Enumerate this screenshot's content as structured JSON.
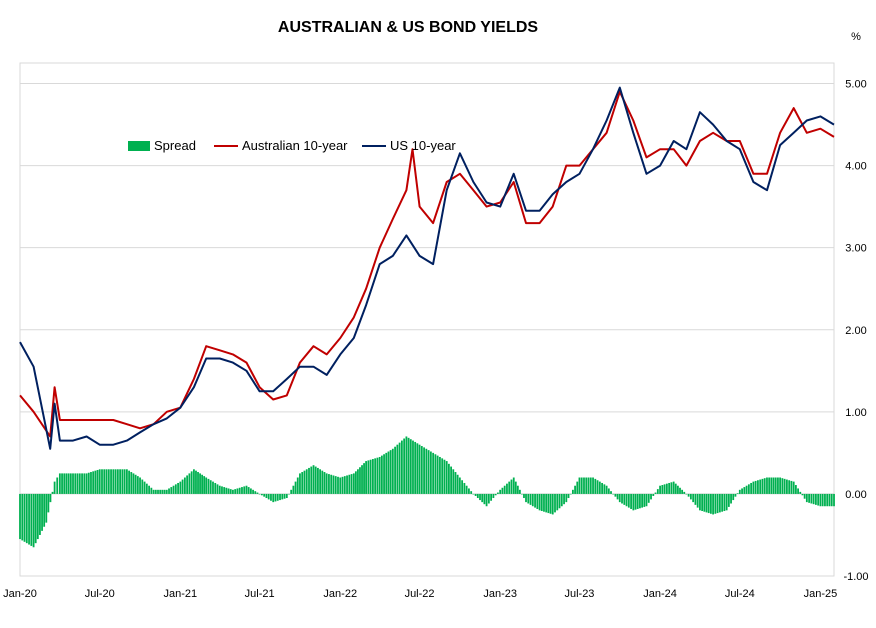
{
  "chart_data": {
    "type": "line",
    "title": "AUSTRALIAN & US BOND YIELDS",
    "unit_label": "%",
    "ylim": [
      -1.0,
      5.25
    ],
    "yticks": [
      -1.0,
      0.0,
      1.0,
      2.0,
      3.0,
      4.0,
      5.0
    ],
    "ytick_labels": [
      "-1.00",
      "0.00",
      "1.00",
      "2.00",
      "3.00",
      "4.00",
      "5.00"
    ],
    "xlim": [
      "2020-01-01",
      "2025-02-01"
    ],
    "xtick_dates": [
      "2020-01-01",
      "2020-07-01",
      "2021-01-01",
      "2021-07-01",
      "2022-01-01",
      "2022-07-01",
      "2023-01-01",
      "2023-07-01",
      "2024-01-01",
      "2024-07-01",
      "2025-01-01"
    ],
    "xtick_labels": [
      "Jan-20",
      "Jul-20",
      "Jan-21",
      "Jul-21",
      "Jan-22",
      "Jul-22",
      "Jan-23",
      "Jul-23",
      "Jan-24",
      "Jul-24",
      "Jan-25"
    ],
    "y_axis_position": "right",
    "grid": "horizontal",
    "legend": {
      "placement": "top-left"
    },
    "series": [
      {
        "name": "Spread",
        "kind": "bar",
        "color": "#00b050",
        "points": [
          [
            "2020-01-01",
            -0.55
          ],
          [
            "2020-02-01",
            -0.65
          ],
          [
            "2020-03-01",
            -0.35
          ],
          [
            "2020-03-20",
            0.15
          ],
          [
            "2020-04-01",
            0.25
          ],
          [
            "2020-05-01",
            0.25
          ],
          [
            "2020-06-01",
            0.25
          ],
          [
            "2020-07-01",
            0.3
          ],
          [
            "2020-08-01",
            0.3
          ],
          [
            "2020-09-01",
            0.3
          ],
          [
            "2020-10-01",
            0.2
          ],
          [
            "2020-11-01",
            0.05
          ],
          [
            "2020-12-01",
            0.05
          ],
          [
            "2021-01-01",
            0.15
          ],
          [
            "2021-02-01",
            0.3
          ],
          [
            "2021-03-01",
            0.2
          ],
          [
            "2021-04-01",
            0.1
          ],
          [
            "2021-05-01",
            0.05
          ],
          [
            "2021-06-01",
            0.1
          ],
          [
            "2021-07-01",
            0.0
          ],
          [
            "2021-08-01",
            -0.1
          ],
          [
            "2021-09-01",
            -0.05
          ],
          [
            "2021-10-01",
            0.25
          ],
          [
            "2021-11-01",
            0.35
          ],
          [
            "2021-12-01",
            0.25
          ],
          [
            "2022-01-01",
            0.2
          ],
          [
            "2022-02-01",
            0.25
          ],
          [
            "2022-03-01",
            0.4
          ],
          [
            "2022-04-01",
            0.45
          ],
          [
            "2022-05-01",
            0.55
          ],
          [
            "2022-06-01",
            0.7
          ],
          [
            "2022-07-01",
            0.6
          ],
          [
            "2022-08-01",
            0.5
          ],
          [
            "2022-09-01",
            0.4
          ],
          [
            "2022-10-01",
            0.2
          ],
          [
            "2022-11-01",
            0.0
          ],
          [
            "2022-12-01",
            -0.15
          ],
          [
            "2023-01-01",
            0.05
          ],
          [
            "2023-02-01",
            0.2
          ],
          [
            "2023-03-01",
            -0.1
          ],
          [
            "2023-04-01",
            -0.2
          ],
          [
            "2023-05-01",
            -0.25
          ],
          [
            "2023-06-01",
            -0.1
          ],
          [
            "2023-07-01",
            0.2
          ],
          [
            "2023-08-01",
            0.2
          ],
          [
            "2023-09-01",
            0.1
          ],
          [
            "2023-10-01",
            -0.1
          ],
          [
            "2023-11-01",
            -0.2
          ],
          [
            "2023-12-01",
            -0.15
          ],
          [
            "2024-01-01",
            0.1
          ],
          [
            "2024-02-01",
            0.15
          ],
          [
            "2024-03-01",
            0.0
          ],
          [
            "2024-04-01",
            -0.2
          ],
          [
            "2024-05-01",
            -0.25
          ],
          [
            "2024-06-01",
            -0.2
          ],
          [
            "2024-07-01",
            0.05
          ],
          [
            "2024-08-01",
            0.15
          ],
          [
            "2024-09-01",
            0.2
          ],
          [
            "2024-10-01",
            0.2
          ],
          [
            "2024-11-01",
            0.15
          ],
          [
            "2024-12-01",
            -0.1
          ],
          [
            "2025-01-01",
            -0.15
          ],
          [
            "2025-02-01",
            -0.15
          ]
        ]
      },
      {
        "name": "Australian 10-year",
        "kind": "line",
        "color": "#c00000",
        "points": [
          [
            "2020-01-01",
            1.2
          ],
          [
            "2020-02-01",
            1.0
          ],
          [
            "2020-03-10",
            0.7
          ],
          [
            "2020-03-20",
            1.3
          ],
          [
            "2020-04-01",
            0.9
          ],
          [
            "2020-05-01",
            0.9
          ],
          [
            "2020-06-01",
            0.9
          ],
          [
            "2020-07-01",
            0.9
          ],
          [
            "2020-08-01",
            0.9
          ],
          [
            "2020-09-01",
            0.85
          ],
          [
            "2020-10-01",
            0.8
          ],
          [
            "2020-11-01",
            0.85
          ],
          [
            "2020-12-01",
            1.0
          ],
          [
            "2021-01-01",
            1.05
          ],
          [
            "2021-02-01",
            1.4
          ],
          [
            "2021-03-01",
            1.8
          ],
          [
            "2021-04-01",
            1.75
          ],
          [
            "2021-05-01",
            1.7
          ],
          [
            "2021-06-01",
            1.6
          ],
          [
            "2021-07-01",
            1.3
          ],
          [
            "2021-08-01",
            1.15
          ],
          [
            "2021-09-01",
            1.2
          ],
          [
            "2021-10-01",
            1.6
          ],
          [
            "2021-11-01",
            1.8
          ],
          [
            "2021-12-01",
            1.7
          ],
          [
            "2022-01-01",
            1.9
          ],
          [
            "2022-02-01",
            2.15
          ],
          [
            "2022-03-01",
            2.5
          ],
          [
            "2022-04-01",
            3.0
          ],
          [
            "2022-05-01",
            3.35
          ],
          [
            "2022-06-01",
            3.7
          ],
          [
            "2022-06-15",
            4.2
          ],
          [
            "2022-07-01",
            3.5
          ],
          [
            "2022-08-01",
            3.3
          ],
          [
            "2022-09-01",
            3.8
          ],
          [
            "2022-10-01",
            3.9
          ],
          [
            "2022-11-01",
            3.7
          ],
          [
            "2022-12-01",
            3.5
          ],
          [
            "2023-01-01",
            3.55
          ],
          [
            "2023-02-01",
            3.8
          ],
          [
            "2023-03-01",
            3.3
          ],
          [
            "2023-04-01",
            3.3
          ],
          [
            "2023-05-01",
            3.5
          ],
          [
            "2023-06-01",
            4.0
          ],
          [
            "2023-07-01",
            4.0
          ],
          [
            "2023-08-01",
            4.2
          ],
          [
            "2023-09-01",
            4.4
          ],
          [
            "2023-10-01",
            4.9
          ],
          [
            "2023-11-01",
            4.55
          ],
          [
            "2023-12-01",
            4.1
          ],
          [
            "2024-01-01",
            4.2
          ],
          [
            "2024-02-01",
            4.2
          ],
          [
            "2024-03-01",
            4.0
          ],
          [
            "2024-04-01",
            4.3
          ],
          [
            "2024-05-01",
            4.4
          ],
          [
            "2024-06-01",
            4.3
          ],
          [
            "2024-07-01",
            4.3
          ],
          [
            "2024-08-01",
            3.9
          ],
          [
            "2024-09-01",
            3.9
          ],
          [
            "2024-10-01",
            4.4
          ],
          [
            "2024-11-01",
            4.7
          ],
          [
            "2024-12-01",
            4.4
          ],
          [
            "2025-01-01",
            4.45
          ],
          [
            "2025-02-01",
            4.35
          ]
        ]
      },
      {
        "name": "US 10-year",
        "kind": "line",
        "color": "#002060",
        "points": [
          [
            "2020-01-01",
            1.85
          ],
          [
            "2020-02-01",
            1.55
          ],
          [
            "2020-03-10",
            0.55
          ],
          [
            "2020-03-20",
            1.1
          ],
          [
            "2020-04-01",
            0.65
          ],
          [
            "2020-05-01",
            0.65
          ],
          [
            "2020-06-01",
            0.7
          ],
          [
            "2020-07-01",
            0.6
          ],
          [
            "2020-08-01",
            0.6
          ],
          [
            "2020-09-01",
            0.65
          ],
          [
            "2020-10-01",
            0.75
          ],
          [
            "2020-11-01",
            0.85
          ],
          [
            "2020-12-01",
            0.92
          ],
          [
            "2021-01-01",
            1.05
          ],
          [
            "2021-02-01",
            1.3
          ],
          [
            "2021-03-01",
            1.65
          ],
          [
            "2021-04-01",
            1.65
          ],
          [
            "2021-05-01",
            1.6
          ],
          [
            "2021-06-01",
            1.5
          ],
          [
            "2021-07-01",
            1.25
          ],
          [
            "2021-08-01",
            1.25
          ],
          [
            "2021-09-01",
            1.4
          ],
          [
            "2021-10-01",
            1.55
          ],
          [
            "2021-11-01",
            1.55
          ],
          [
            "2021-12-01",
            1.45
          ],
          [
            "2022-01-01",
            1.7
          ],
          [
            "2022-02-01",
            1.9
          ],
          [
            "2022-03-01",
            2.3
          ],
          [
            "2022-04-01",
            2.8
          ],
          [
            "2022-05-01",
            2.9
          ],
          [
            "2022-06-01",
            3.15
          ],
          [
            "2022-07-01",
            2.9
          ],
          [
            "2022-08-01",
            2.8
          ],
          [
            "2022-09-01",
            3.7
          ],
          [
            "2022-10-01",
            4.15
          ],
          [
            "2022-11-01",
            3.8
          ],
          [
            "2022-12-01",
            3.55
          ],
          [
            "2023-01-01",
            3.5
          ],
          [
            "2023-02-01",
            3.9
          ],
          [
            "2023-03-01",
            3.45
          ],
          [
            "2023-04-01",
            3.45
          ],
          [
            "2023-05-01",
            3.65
          ],
          [
            "2023-06-01",
            3.8
          ],
          [
            "2023-07-01",
            3.9
          ],
          [
            "2023-08-01",
            4.2
          ],
          [
            "2023-09-01",
            4.55
          ],
          [
            "2023-10-01",
            4.95
          ],
          [
            "2023-11-01",
            4.4
          ],
          [
            "2023-12-01",
            3.9
          ],
          [
            "2024-01-01",
            4.0
          ],
          [
            "2024-02-01",
            4.3
          ],
          [
            "2024-03-01",
            4.2
          ],
          [
            "2024-04-01",
            4.65
          ],
          [
            "2024-05-01",
            4.5
          ],
          [
            "2024-06-01",
            4.3
          ],
          [
            "2024-07-01",
            4.2
          ],
          [
            "2024-08-01",
            3.8
          ],
          [
            "2024-09-01",
            3.7
          ],
          [
            "2024-10-01",
            4.25
          ],
          [
            "2024-11-01",
            4.4
          ],
          [
            "2024-12-01",
            4.55
          ],
          [
            "2025-01-01",
            4.6
          ],
          [
            "2025-02-01",
            4.5
          ]
        ]
      }
    ]
  }
}
